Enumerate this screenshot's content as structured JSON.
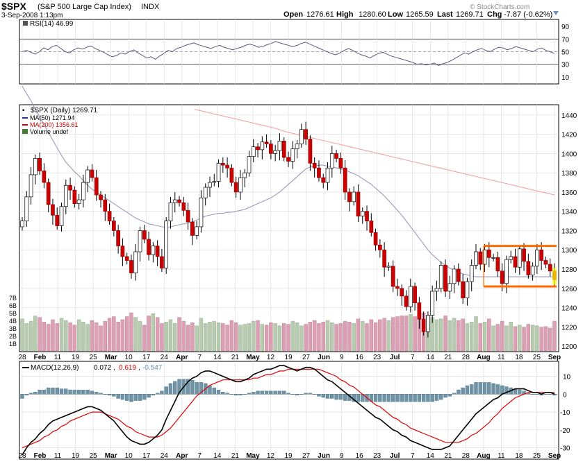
{
  "header": {
    "symbol": "$SPX",
    "name": "(S&P 500 Large Cap Index)",
    "exchange": "INDX",
    "date": "3-Sep-2008 1:13pm",
    "open_label": "Open",
    "open": "1276.61",
    "high_label": "High",
    "high": "1280.60",
    "low_label": "Low",
    "low": "1265.59",
    "last_label": "Last",
    "last": "1269.71",
    "chg_label": "Chg",
    "chg": "-7.87 (-0.62%)",
    "watermark": "© StockCharts.com"
  },
  "colors": {
    "up_candle": "#000000",
    "down_candle": "#cc0000",
    "ma50": "#9a9ab8",
    "ma200": "#f4a0a0",
    "volume_up": "#b8cbb0",
    "volume_down": "#dba0b4",
    "macd_line": "#000000",
    "signal_line": "#e00000",
    "histogram": "#6e94a6",
    "rsi_line": "#555577",
    "resistance_box": "#ff6a00",
    "grid": "#d8d8d8"
  },
  "chart_data": [
    {
      "type": "line",
      "name": "RSI",
      "legend": "RSI(14) 46.99",
      "y_ticks": [
        10,
        30,
        50,
        70,
        90
      ],
      "reference_lines": [
        30,
        50,
        70
      ],
      "ylim": [
        0,
        100
      ],
      "points_per_month": "daily",
      "values": [
        50,
        52,
        49,
        46,
        50,
        56,
        53,
        58,
        60,
        55,
        50,
        48,
        53,
        56,
        54,
        57,
        59,
        55,
        52,
        49,
        45,
        42,
        44,
        48,
        46,
        50,
        53,
        48,
        44,
        40,
        42,
        38,
        43,
        47,
        52,
        50,
        55,
        57,
        60,
        62,
        64,
        61,
        59,
        57,
        55,
        58,
        60,
        57,
        55,
        53,
        55,
        57,
        60,
        62,
        60,
        57,
        58,
        61,
        63,
        66,
        64,
        62,
        60,
        58,
        60,
        63,
        65,
        62,
        59,
        56,
        53,
        50,
        47,
        45,
        48,
        52,
        55,
        52,
        48,
        45,
        43,
        40,
        44,
        47,
        49,
        46,
        43,
        41,
        39,
        37,
        35,
        33,
        30,
        31,
        29,
        30,
        32,
        28,
        31,
        33,
        36,
        40,
        44,
        48,
        46,
        50,
        53,
        55,
        52,
        50,
        54,
        57,
        56,
        53,
        55,
        58,
        56,
        54,
        52,
        50,
        54,
        56,
        52,
        50,
        47
      ]
    },
    {
      "type": "candlestick",
      "name": "$SPX (Daily)",
      "legend": "$SPX (Daily) 1269.71",
      "ma50_legend": "MA(50) 1271.94",
      "ma200_legend": "MA(200) 1356.61",
      "volume_legend": "Volume undef",
      "ylim": [
        1195,
        1450
      ],
      "y_ticks": [
        1200,
        1220,
        1240,
        1260,
        1280,
        1300,
        1320,
        1340,
        1360,
        1380,
        1400,
        1420,
        1440
      ],
      "x_ticks": [
        "28",
        "Feb",
        "11",
        "19",
        "25",
        "Mar",
        "10",
        "17",
        "24",
        "Apr",
        "7",
        "14",
        "21",
        "May",
        "12",
        "19",
        "27",
        "Jun",
        "9",
        "16",
        "23",
        "Jul",
        "7",
        "14",
        "21",
        "28",
        "Aug",
        "11",
        "18",
        "25",
        "Sep"
      ],
      "bold_x_ticks": [
        "Feb",
        "Mar",
        "Apr",
        "May",
        "Jun",
        "Jul",
        "Aug",
        "Sep"
      ],
      "resistance_range": [
        1262,
        1304
      ],
      "volume_ticks": [
        "1B",
        "2B",
        "3B",
        "4B",
        "5B",
        "6B",
        "7B"
      ],
      "close": [
        1330,
        1355,
        1378,
        1395,
        1382,
        1370,
        1347,
        1336,
        1325,
        1345,
        1367,
        1362,
        1348,
        1352,
        1370,
        1383,
        1375,
        1357,
        1352,
        1340,
        1330,
        1320,
        1304,
        1293,
        1289,
        1276,
        1298,
        1320,
        1311,
        1295,
        1304,
        1293,
        1281,
        1330,
        1349,
        1352,
        1349,
        1341,
        1329,
        1315,
        1324,
        1354,
        1365,
        1370,
        1371,
        1390,
        1388,
        1385,
        1370,
        1360,
        1375,
        1380,
        1397,
        1407,
        1404,
        1412,
        1410,
        1400,
        1403,
        1413,
        1396,
        1392,
        1405,
        1410,
        1425,
        1415,
        1390,
        1385,
        1375,
        1370,
        1385,
        1400,
        1395,
        1385,
        1360,
        1350,
        1360,
        1335,
        1340,
        1330,
        1318,
        1305,
        1300,
        1282,
        1283,
        1262,
        1260,
        1252,
        1241,
        1262,
        1245,
        1228,
        1215,
        1232,
        1257,
        1260,
        1284,
        1257,
        1265,
        1280,
        1267,
        1250,
        1267,
        1284,
        1298,
        1285,
        1300,
        1292,
        1292,
        1278,
        1265,
        1290,
        1293,
        1282,
        1301,
        1288,
        1274,
        1283,
        1300,
        1289,
        1285,
        1278,
        1269
      ],
      "ma50": [
        1470,
        1462,
        1455,
        1446,
        1438,
        1430,
        1422,
        1414,
        1406,
        1398,
        1391,
        1386,
        1381,
        1377,
        1372,
        1367,
        1363,
        1360,
        1357,
        1354,
        1351,
        1348,
        1345,
        1342,
        1339,
        1336,
        1333,
        1331,
        1329,
        1327,
        1326,
        1325,
        1324,
        1323,
        1324,
        1325,
        1326,
        1327,
        1328,
        1329,
        1331,
        1333,
        1335,
        1336,
        1337,
        1338,
        1338,
        1339,
        1339,
        1340,
        1341,
        1342,
        1344,
        1346,
        1348,
        1350,
        1352,
        1354,
        1357,
        1360,
        1364,
        1368,
        1372,
        1376,
        1380,
        1384,
        1386,
        1387,
        1388,
        1388,
        1387,
        1386,
        1385,
        1384,
        1383,
        1381,
        1379,
        1377,
        1374,
        1371,
        1368,
        1364,
        1360,
        1356,
        1351,
        1346,
        1341,
        1336,
        1330,
        1324,
        1318,
        1312,
        1306,
        1300,
        1295,
        1291,
        1287,
        1284,
        1281,
        1279,
        1277,
        1275,
        1274,
        1273,
        1272,
        1272,
        1272,
        1272,
        1272,
        1272,
        1272,
        1272,
        1272,
        1272,
        1272,
        1272,
        1272,
        1272,
        1272,
        1272,
        1272,
        1272,
        1272
      ],
      "ma200_visible": [
        1446,
        1444,
        1442,
        1440,
        1438,
        1436,
        1434,
        1432,
        1430,
        1428,
        1426,
        1423,
        1421,
        1419,
        1417,
        1415,
        1413,
        1411,
        1409,
        1407,
        1405,
        1403,
        1401,
        1399,
        1397,
        1395,
        1393,
        1391,
        1389,
        1387,
        1385,
        1383,
        1381,
        1379,
        1377,
        1375,
        1373,
        1371,
        1369,
        1367,
        1365,
        1363,
        1361,
        1359,
        1357
      ],
      "volume": [
        4.2,
        3.6,
        3.9,
        4.6,
        4.4,
        3.8,
        3.5,
        4.1,
        3.6,
        4.3,
        4.0,
        3.7,
        3.4,
        4.1,
        3.8,
        3.5,
        4.0,
        3.7,
        3.3,
        3.9,
        4.3,
        4.5,
        3.8,
        4.1,
        4.5,
        5.0,
        4.4,
        3.9,
        3.4,
        4.6,
        4.9,
        4.4,
        3.6,
        3.8,
        4.1,
        3.6,
        4.4,
        3.9,
        3.4,
        3.7,
        3.3,
        4.3,
        3.6,
        3.8,
        3.9,
        3.7,
        3.6,
        3.4,
        4.0,
        3.7,
        3.4,
        3.5,
        3.6,
        3.9,
        4.0,
        3.5,
        3.4,
        3.7,
        3.6,
        3.3,
        3.6,
        3.5,
        3.9,
        3.7,
        3.3,
        3.5,
        3.8,
        4.0,
        3.6,
        3.8,
        4.0,
        3.7,
        3.5,
        3.6,
        3.9,
        3.8,
        3.6,
        4.2,
        3.9,
        3.6,
        4.1,
        3.7,
        4.1,
        4.3,
        4.0,
        4.4,
        4.5,
        4.6,
        4.6,
        4.8,
        4.5,
        4.9,
        5.0,
        4.6,
        4.4,
        4.1,
        4.2,
        4.6,
        4.0,
        4.3,
        4.0,
        4.2,
        3.6,
        3.8,
        4.5,
        3.6,
        3.8,
        4.2,
        3.3,
        3.5,
        3.9,
        3.3,
        3.8,
        3.2,
        3.4,
        3.1,
        3.5,
        3.4,
        3.3,
        3.1,
        3.2,
        3.0,
        3.9
      ]
    },
    {
      "type": "line",
      "name": "MACD",
      "legend_main": "MACD(12,26,9)",
      "legend_macd": "0.072",
      "legend_signal": "0.619",
      "legend_hist": "-0.547",
      "y_ticks": [
        10,
        0,
        -10,
        -20,
        -30
      ],
      "ylim": [
        -36,
        18
      ],
      "macd": [
        -34,
        -30,
        -27,
        -25,
        -22,
        -20,
        -17,
        -15,
        -14,
        -13,
        -12,
        -11,
        -10,
        -9,
        -8,
        -7,
        -7,
        -8,
        -9,
        -11,
        -13,
        -15,
        -18,
        -21,
        -24,
        -26,
        -27,
        -28,
        -28,
        -27,
        -25,
        -23,
        -20,
        -14,
        -9,
        -4,
        1,
        4,
        7,
        9,
        10,
        12,
        13,
        13,
        12,
        11,
        10,
        9,
        8,
        7,
        7,
        8,
        9,
        11,
        12,
        13,
        14,
        14,
        15,
        16,
        16,
        15,
        14,
        13,
        14,
        15,
        15,
        14,
        12,
        10,
        8,
        7,
        5,
        3,
        1,
        -1,
        -3,
        -5,
        -7,
        -9,
        -11,
        -13,
        -14,
        -16,
        -18,
        -20,
        -21,
        -23,
        -24,
        -26,
        -27,
        -28,
        -29,
        -30,
        -31,
        -31,
        -31,
        -30,
        -29,
        -26,
        -23,
        -20,
        -17,
        -14,
        -11,
        -9,
        -7,
        -5,
        -3,
        -2,
        0,
        1,
        2,
        3,
        3,
        3,
        2,
        1,
        1,
        0,
        1,
        1,
        0
      ],
      "signal": [
        -30,
        -29,
        -28,
        -27,
        -26,
        -24,
        -23,
        -21,
        -20,
        -18,
        -17,
        -15,
        -14,
        -13,
        -12,
        -11,
        -10,
        -10,
        -10,
        -11,
        -12,
        -13,
        -14,
        -16,
        -18,
        -19,
        -21,
        -22,
        -23,
        -24,
        -24,
        -24,
        -23,
        -21,
        -19,
        -16,
        -13,
        -10,
        -7,
        -4,
        -1,
        1,
        3,
        5,
        6,
        7,
        8,
        8,
        8,
        8,
        8,
        8,
        8,
        9,
        9,
        10,
        11,
        11,
        12,
        13,
        13,
        14,
        14,
        14,
        14,
        14,
        14,
        14,
        14,
        13,
        12,
        11,
        10,
        8,
        7,
        5,
        4,
        2,
        0,
        -2,
        -4,
        -6,
        -7,
        -9,
        -11,
        -13,
        -14,
        -16,
        -17,
        -19,
        -20,
        -21,
        -22,
        -23,
        -24,
        -25,
        -26,
        -27,
        -27,
        -27,
        -27,
        -26,
        -25,
        -23,
        -22,
        -20,
        -18,
        -16,
        -13,
        -11,
        -8,
        -6,
        -4,
        -2,
        -1,
        0,
        1,
        1,
        1,
        1,
        1,
        1,
        1
      ]
    }
  ]
}
